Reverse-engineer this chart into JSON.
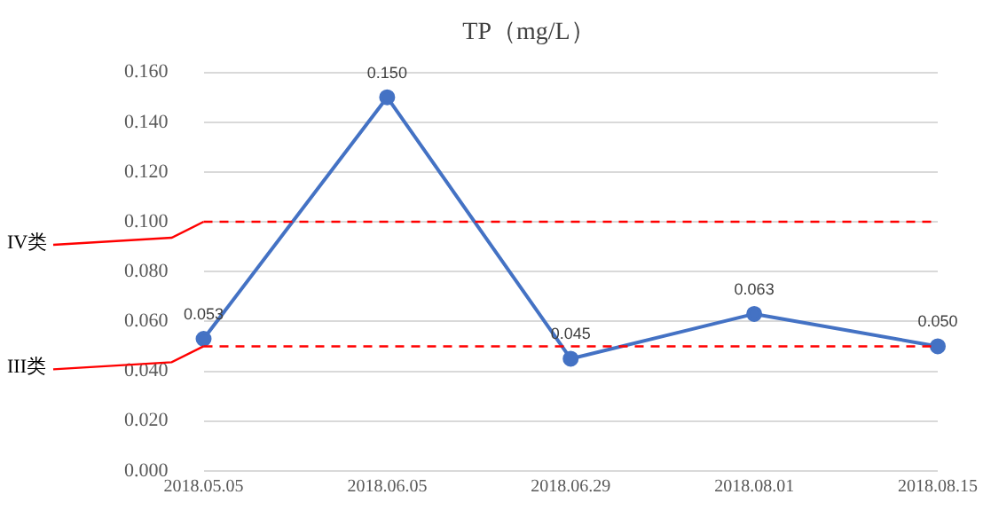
{
  "chart_data": {
    "type": "line",
    "title": "TP（mg/L）",
    "categories": [
      "2018.05.05",
      "2018.06.05",
      "2018.06.29",
      "2018.08.01",
      "2018.08.15"
    ],
    "series": [
      {
        "color": "#4472c4",
        "values": [
          0.053,
          0.15,
          0.045,
          0.063,
          0.05
        ],
        "value_labels": [
          "0.053",
          "0.150",
          "0.045",
          "0.063",
          "0.050"
        ]
      }
    ],
    "ylim": [
      0,
      0.16
    ],
    "yticks": [
      {
        "value": 0,
        "label": "0.000"
      },
      {
        "value": 0.02,
        "label": "0.020"
      },
      {
        "value": 0.04,
        "label": "0.040"
      },
      {
        "value": 0.06,
        "label": "0.060"
      },
      {
        "value": 0.08,
        "label": "0.080"
      },
      {
        "value": 0.1,
        "label": "0.100"
      },
      {
        "value": 0.12,
        "label": "0.120"
      },
      {
        "value": 0.14,
        "label": "0.140"
      },
      {
        "value": 0.16,
        "label": "0.160"
      }
    ],
    "grid": "y",
    "legend": false,
    "marker": "circle",
    "line_style": "solid",
    "ref_lines": [
      {
        "axis": "y",
        "value": 0.1,
        "label": "IV类",
        "color": "#ff0000",
        "line_style": "dashed"
      },
      {
        "axis": "y",
        "value": 0.05,
        "label": "III类",
        "color": "#ff0000",
        "line_style": "dashed"
      }
    ]
  }
}
